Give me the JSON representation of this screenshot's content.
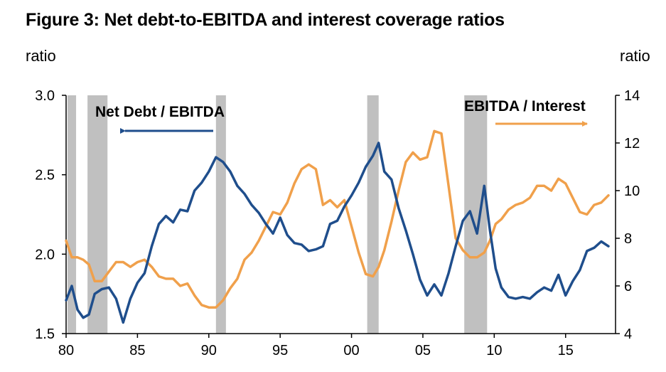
{
  "title": "Figure 3: Net debt-to-EBITDA and interest coverage ratios",
  "chart_data": {
    "type": "line",
    "title": "Figure 3: Net debt-to-EBITDA and interest coverage ratios",
    "left_axis": {
      "label": "ratio",
      "range": [
        1.5,
        3.0
      ],
      "ticks": [
        "3.0",
        "2.5",
        "2.0",
        "1.5"
      ],
      "tick_values": [
        3.0,
        2.5,
        2.0,
        1.5
      ]
    },
    "right_axis": {
      "label": "ratio",
      "range": [
        4,
        14
      ],
      "ticks": [
        "14",
        "12",
        "10",
        "8",
        "6",
        "4"
      ],
      "tick_values": [
        14,
        12,
        10,
        8,
        6,
        4
      ]
    },
    "x_axis": {
      "range": [
        1980,
        2018.5
      ],
      "ticks": [
        "80",
        "85",
        "90",
        "95",
        "00",
        "05",
        "10",
        "15"
      ],
      "tick_values": [
        1980,
        1985,
        1990,
        1995,
        2000,
        2005,
        2010,
        2015
      ]
    },
    "recessions": [
      [
        1980.1,
        1980.7
      ],
      [
        1981.5,
        1982.9
      ],
      [
        1990.5,
        1991.2
      ],
      [
        2001.1,
        2001.9
      ],
      [
        2007.9,
        2009.5
      ]
    ],
    "colors": {
      "net_debt": "#1f4e8c",
      "ebitda_interest": "#f0a04b",
      "recession": "#c0c0c0"
    },
    "annotations": {
      "net_debt_label": "Net Debt / EBITDA",
      "ebitda_label": "EBITDA / Interest"
    },
    "series": [
      {
        "name": "Net Debt / EBITDA",
        "axis": "left",
        "x": [
          1980.0,
          1980.4,
          1980.8,
          1981.2,
          1981.6,
          1982.0,
          1982.5,
          1983.0,
          1983.5,
          1984.0,
          1984.5,
          1985.0,
          1985.5,
          1986.0,
          1986.5,
          1987.0,
          1987.5,
          1988.0,
          1988.5,
          1989.0,
          1989.5,
          1990.0,
          1990.5,
          1991.0,
          1991.5,
          1992.0,
          1992.5,
          1993.0,
          1993.5,
          1994.0,
          1994.5,
          1995.0,
          1995.5,
          1996.0,
          1996.5,
          1997.0,
          1997.5,
          1998.0,
          1998.5,
          1999.0,
          1999.5,
          2000.0,
          2000.5,
          2001.0,
          2001.5,
          2001.9,
          2002.3,
          2002.8,
          2003.3,
          2003.8,
          2004.3,
          2004.8,
          2005.3,
          2005.8,
          2006.3,
          2006.8,
          2007.3,
          2007.8,
          2008.3,
          2008.8,
          2009.3,
          2009.7,
          2010.1,
          2010.5,
          2011.0,
          2011.5,
          2012.0,
          2012.5,
          2013.0,
          2013.5,
          2014.0,
          2014.5,
          2015.0,
          2015.5,
          2016.0,
          2016.5,
          2017.0,
          2017.5,
          2018.0
        ],
        "values": [
          1.71,
          1.8,
          1.65,
          1.6,
          1.62,
          1.75,
          1.78,
          1.79,
          1.72,
          1.57,
          1.72,
          1.82,
          1.88,
          2.05,
          2.19,
          2.24,
          2.2,
          2.28,
          2.27,
          2.4,
          2.45,
          2.52,
          2.61,
          2.58,
          2.52,
          2.43,
          2.38,
          2.31,
          2.26,
          2.19,
          2.13,
          2.23,
          2.12,
          2.07,
          2.06,
          2.02,
          2.03,
          2.05,
          2.19,
          2.21,
          2.3,
          2.37,
          2.45,
          2.55,
          2.62,
          2.7,
          2.52,
          2.47,
          2.29,
          2.15,
          2.0,
          1.84,
          1.74,
          1.81,
          1.74,
          1.88,
          2.05,
          2.21,
          2.27,
          2.13,
          2.43,
          2.15,
          1.91,
          1.79,
          1.73,
          1.72,
          1.73,
          1.72,
          1.76,
          1.79,
          1.77,
          1.87,
          1.74,
          1.83,
          1.9,
          2.02,
          2.04,
          2.08,
          2.05
        ]
      },
      {
        "name": "EBITDA / Interest",
        "axis": "right",
        "x": [
          1980.0,
          1980.4,
          1980.8,
          1981.2,
          1981.6,
          1982.0,
          1982.5,
          1983.0,
          1983.5,
          1984.0,
          1984.5,
          1985.0,
          1985.5,
          1986.0,
          1986.5,
          1987.0,
          1987.5,
          1988.0,
          1988.5,
          1989.0,
          1989.5,
          1990.0,
          1990.5,
          1991.0,
          1991.5,
          1992.0,
          1992.5,
          1993.0,
          1993.5,
          1994.0,
          1994.5,
          1995.0,
          1995.5,
          1996.0,
          1996.5,
          1997.0,
          1997.5,
          1998.0,
          1998.5,
          1999.0,
          1999.5,
          2000.0,
          2000.5,
          2001.0,
          2001.5,
          2001.9,
          2002.3,
          2002.8,
          2003.3,
          2003.8,
          2004.3,
          2004.8,
          2005.3,
          2005.8,
          2006.3,
          2006.8,
          2007.3,
          2007.8,
          2008.3,
          2008.8,
          2009.3,
          2009.7,
          2010.1,
          2010.5,
          2011.0,
          2011.5,
          2012.0,
          2012.5,
          2013.0,
          2013.5,
          2014.0,
          2014.5,
          2015.0,
          2015.5,
          2016.0,
          2016.5,
          2017.0,
          2017.5,
          2018.0
        ],
        "values": [
          7.9,
          7.2,
          7.2,
          7.1,
          6.9,
          6.2,
          6.2,
          6.6,
          7.0,
          7.0,
          6.8,
          7.0,
          7.1,
          6.8,
          6.4,
          6.3,
          6.3,
          6.0,
          6.1,
          5.6,
          5.2,
          5.1,
          5.1,
          5.4,
          5.9,
          6.3,
          7.1,
          7.4,
          7.9,
          8.5,
          9.1,
          9.0,
          9.5,
          10.3,
          10.9,
          11.1,
          10.9,
          9.4,
          9.6,
          9.3,
          9.6,
          8.5,
          7.4,
          6.5,
          6.4,
          6.8,
          7.5,
          8.7,
          10.0,
          11.2,
          11.6,
          11.3,
          11.4,
          12.5,
          12.4,
          10.2,
          8.0,
          7.5,
          7.2,
          7.2,
          7.4,
          7.9,
          8.6,
          8.8,
          9.2,
          9.4,
          9.5,
          9.7,
          10.2,
          10.2,
          10.0,
          10.5,
          10.3,
          9.7,
          9.1,
          9.0,
          9.4,
          9.5,
          9.8
        ]
      }
    ]
  }
}
